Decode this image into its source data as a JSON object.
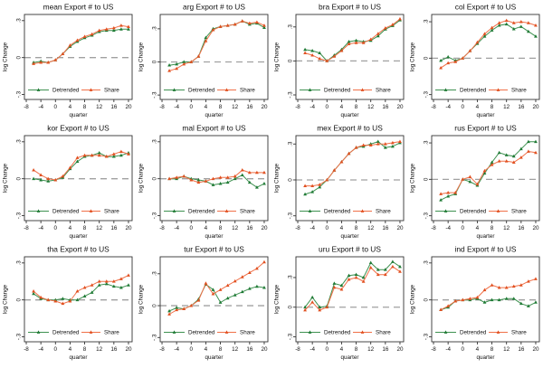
{
  "page": {
    "background": "#ffffff",
    "description": "3x4 grid of Stata-style line charts of export counts to US by country"
  },
  "chart_data": {
    "type": "line",
    "xlabel": "quarter",
    "ylabel": "log Change",
    "x": [
      -6,
      -4,
      -2,
      0,
      2,
      4,
      6,
      8,
      10,
      12,
      14,
      16,
      18,
      20
    ],
    "xticks": [
      -8,
      -4,
      0,
      4,
      8,
      12,
      16,
      20
    ],
    "yticks": [
      {
        "label": ".3",
        "value": 0.3
      },
      {
        "label": "0",
        "value": 0
      },
      {
        "label": "-.3",
        "value": -0.3
      }
    ],
    "zero_reference_line": true,
    "grid": false,
    "legend_position": "inside-bottom",
    "legend": [
      {
        "label": "Detrended",
        "line_color": "#3e9150",
        "marker_color": "#1f7a35",
        "marker": "triangle"
      },
      {
        "label": "Share",
        "line_color": "#f07048",
        "marker_color": "#e05020",
        "marker": "triangle"
      }
    ],
    "colors": {
      "detrended_line": "#3e9150",
      "detrended_marker": "#1f7a35",
      "share_line": "#f07048",
      "share_marker": "#e05020",
      "zero_line": "#a0a0a0",
      "axis": "#333333"
    },
    "panels": [
      {
        "id": "mean",
        "title": "mean Export # to US",
        "ylim": [
          -0.34,
          0.35
        ],
        "series": [
          {
            "name": "Detrended",
            "values": [
              -0.04,
              -0.03,
              -0.04,
              -0.02,
              0.03,
              0.09,
              0.13,
              0.16,
              0.18,
              0.21,
              0.22,
              0.22,
              0.23,
              0.23
            ]
          },
          {
            "name": "Share",
            "values": [
              -0.05,
              -0.04,
              -0.04,
              -0.02,
              0.03,
              0.1,
              0.14,
              0.17,
              0.19,
              0.22,
              0.23,
              0.24,
              0.26,
              0.25
            ]
          }
        ]
      },
      {
        "id": "arg",
        "title": "arg Export # to US",
        "ylim": [
          -0.34,
          0.43
        ],
        "series": [
          {
            "name": "Detrended",
            "values": [
              -0.03,
              -0.02,
              0.0,
              0.0,
              0.05,
              0.22,
              0.3,
              0.32,
              0.33,
              0.34,
              0.37,
              0.34,
              0.35,
              0.31
            ]
          },
          {
            "name": "Share",
            "values": [
              -0.08,
              -0.06,
              -0.02,
              0.0,
              0.05,
              0.19,
              0.29,
              0.32,
              0.33,
              0.34,
              0.37,
              0.35,
              0.36,
              0.33
            ]
          }
        ]
      },
      {
        "id": "bra",
        "title": "bra Export # to US",
        "ylim": [
          -0.34,
          0.41
        ],
        "series": [
          {
            "name": "Detrended",
            "values": [
              0.1,
              0.09,
              0.07,
              0.0,
              0.05,
              0.1,
              0.17,
              0.18,
              0.17,
              0.18,
              0.22,
              0.28,
              0.31,
              0.36
            ]
          },
          {
            "name": "Share",
            "values": [
              0.07,
              0.05,
              0.02,
              0.0,
              0.04,
              0.09,
              0.15,
              0.16,
              0.16,
              0.19,
              0.24,
              0.29,
              0.32,
              0.37
            ]
          }
        ]
      },
      {
        "id": "col",
        "title": "col Export # to US",
        "ylim": [
          -0.34,
          0.36
        ],
        "series": [
          {
            "name": "Detrended",
            "values": [
              -0.02,
              0.01,
              -0.02,
              0.0,
              0.06,
              0.12,
              0.18,
              0.23,
              0.27,
              0.28,
              0.24,
              0.26,
              0.22,
              0.18
            ]
          },
          {
            "name": "Share",
            "values": [
              -0.08,
              -0.04,
              -0.03,
              0.0,
              0.06,
              0.13,
              0.2,
              0.25,
              0.29,
              0.31,
              0.29,
              0.3,
              0.29,
              0.27
            ]
          }
        ]
      },
      {
        "id": "kor",
        "title": "kor Export # to US",
        "ylim": [
          -0.34,
          0.35
        ],
        "series": [
          {
            "name": "Detrended",
            "values": [
              0.0,
              -0.01,
              -0.02,
              -0.01,
              0.01,
              0.08,
              0.14,
              0.18,
              0.19,
              0.21,
              0.18,
              0.18,
              0.19,
              0.21
            ]
          },
          {
            "name": "Share",
            "values": [
              0.07,
              0.03,
              0.0,
              -0.01,
              0.02,
              0.09,
              0.17,
              0.19,
              0.19,
              0.19,
              0.18,
              0.2,
              0.22,
              0.2
            ]
          }
        ]
      },
      {
        "id": "mal",
        "title": "mal Export # to US",
        "ylim": [
          -0.34,
          0.35
        ],
        "series": [
          {
            "name": "Detrended",
            "values": [
              0.0,
              0.0,
              0.02,
              0.0,
              -0.01,
              -0.02,
              -0.05,
              -0.04,
              -0.03,
              0.0,
              0.03,
              -0.03,
              -0.07,
              -0.04
            ]
          },
          {
            "name": "Share",
            "values": [
              0.0,
              0.01,
              0.02,
              -0.01,
              -0.03,
              -0.02,
              0.0,
              0.01,
              0.01,
              0.02,
              0.07,
              0.05,
              0.05,
              0.05
            ]
          }
        ]
      },
      {
        "id": "mex",
        "title": "mex Export # to US",
        "ylim": [
          -0.34,
          0.37
        ],
        "series": [
          {
            "name": "Detrended",
            "values": [
              -0.12,
              -0.1,
              -0.06,
              0.0,
              0.08,
              0.15,
              0.22,
              0.27,
              0.28,
              0.3,
              0.32,
              0.27,
              0.28,
              0.31
            ]
          },
          {
            "name": "Share",
            "values": [
              -0.05,
              -0.05,
              -0.04,
              0.0,
              0.08,
              0.15,
              0.22,
              0.27,
              0.29,
              0.29,
              0.3,
              0.3,
              0.31,
              0.32
            ]
          }
        ]
      },
      {
        "id": "rus",
        "title": "rus Export # to US",
        "ylim": [
          -0.34,
          0.36
        ],
        "series": [
          {
            "name": "Detrended",
            "values": [
              -0.17,
              -0.14,
              -0.12,
              0.0,
              -0.02,
              -0.05,
              0.05,
              0.14,
              0.22,
              0.2,
              0.19,
              0.25,
              0.31,
              0.31
            ]
          },
          {
            "name": "Share",
            "values": [
              -0.12,
              -0.11,
              -0.11,
              0.0,
              0.02,
              -0.04,
              0.07,
              0.12,
              0.15,
              0.15,
              0.14,
              0.18,
              0.23,
              0.22
            ]
          }
        ]
      },
      {
        "id": "tha",
        "title": "tha Export # to US",
        "ylim": [
          -0.34,
          0.35
        ],
        "series": [
          {
            "name": "Detrended",
            "values": [
              0.05,
              0.01,
              0.0,
              0.0,
              0.01,
              0.0,
              0.0,
              0.03,
              0.06,
              0.12,
              0.13,
              0.11,
              0.1,
              0.12
            ]
          },
          {
            "name": "Share",
            "values": [
              0.07,
              0.02,
              0.0,
              -0.01,
              -0.03,
              -0.01,
              0.07,
              0.1,
              0.12,
              0.15,
              0.15,
              0.15,
              0.17,
              0.2
            ]
          }
        ]
      },
      {
        "id": "tur",
        "title": "tur Export # to US",
        "ylim": [
          -0.34,
          0.46
        ],
        "series": [
          {
            "name": "Detrended",
            "values": [
              -0.05,
              -0.02,
              -0.03,
              0.0,
              0.06,
              0.2,
              0.15,
              0.03,
              0.07,
              0.1,
              0.13,
              0.16,
              0.18,
              0.17
            ]
          },
          {
            "name": "Share",
            "values": [
              -0.08,
              -0.04,
              -0.03,
              0.0,
              0.05,
              0.21,
              0.11,
              0.15,
              0.19,
              0.23,
              0.27,
              0.31,
              0.35,
              0.41
            ]
          }
        ]
      },
      {
        "id": "uru",
        "title": "uru Export # to US",
        "ylim": [
          -0.35,
          0.51
        ],
        "series": [
          {
            "name": "Detrended",
            "values": [
              0.0,
              0.1,
              0.0,
              0.01,
              0.24,
              0.22,
              0.32,
              0.33,
              0.3,
              0.45,
              0.38,
              0.38,
              0.46,
              0.41
            ]
          },
          {
            "name": "Share",
            "values": [
              -0.03,
              0.05,
              -0.03,
              0.0,
              0.2,
              0.18,
              0.28,
              0.3,
              0.26,
              0.4,
              0.33,
              0.33,
              0.41,
              0.36
            ]
          }
        ]
      },
      {
        "id": "ind",
        "title": "ind Export # to US",
        "ylim": [
          -0.34,
          0.35
        ],
        "series": [
          {
            "name": "Detrended",
            "values": [
              -0.08,
              -0.06,
              -0.01,
              0.0,
              0.0,
              0.01,
              -0.02,
              0.0,
              0.0,
              0.01,
              0.01,
              -0.03,
              -0.05,
              -0.02
            ]
          },
          {
            "name": "Share",
            "values": [
              -0.08,
              -0.05,
              -0.01,
              0.0,
              0.01,
              0.02,
              0.08,
              0.12,
              0.1,
              0.1,
              0.11,
              0.12,
              0.15,
              0.17
            ]
          }
        ]
      }
    ]
  }
}
